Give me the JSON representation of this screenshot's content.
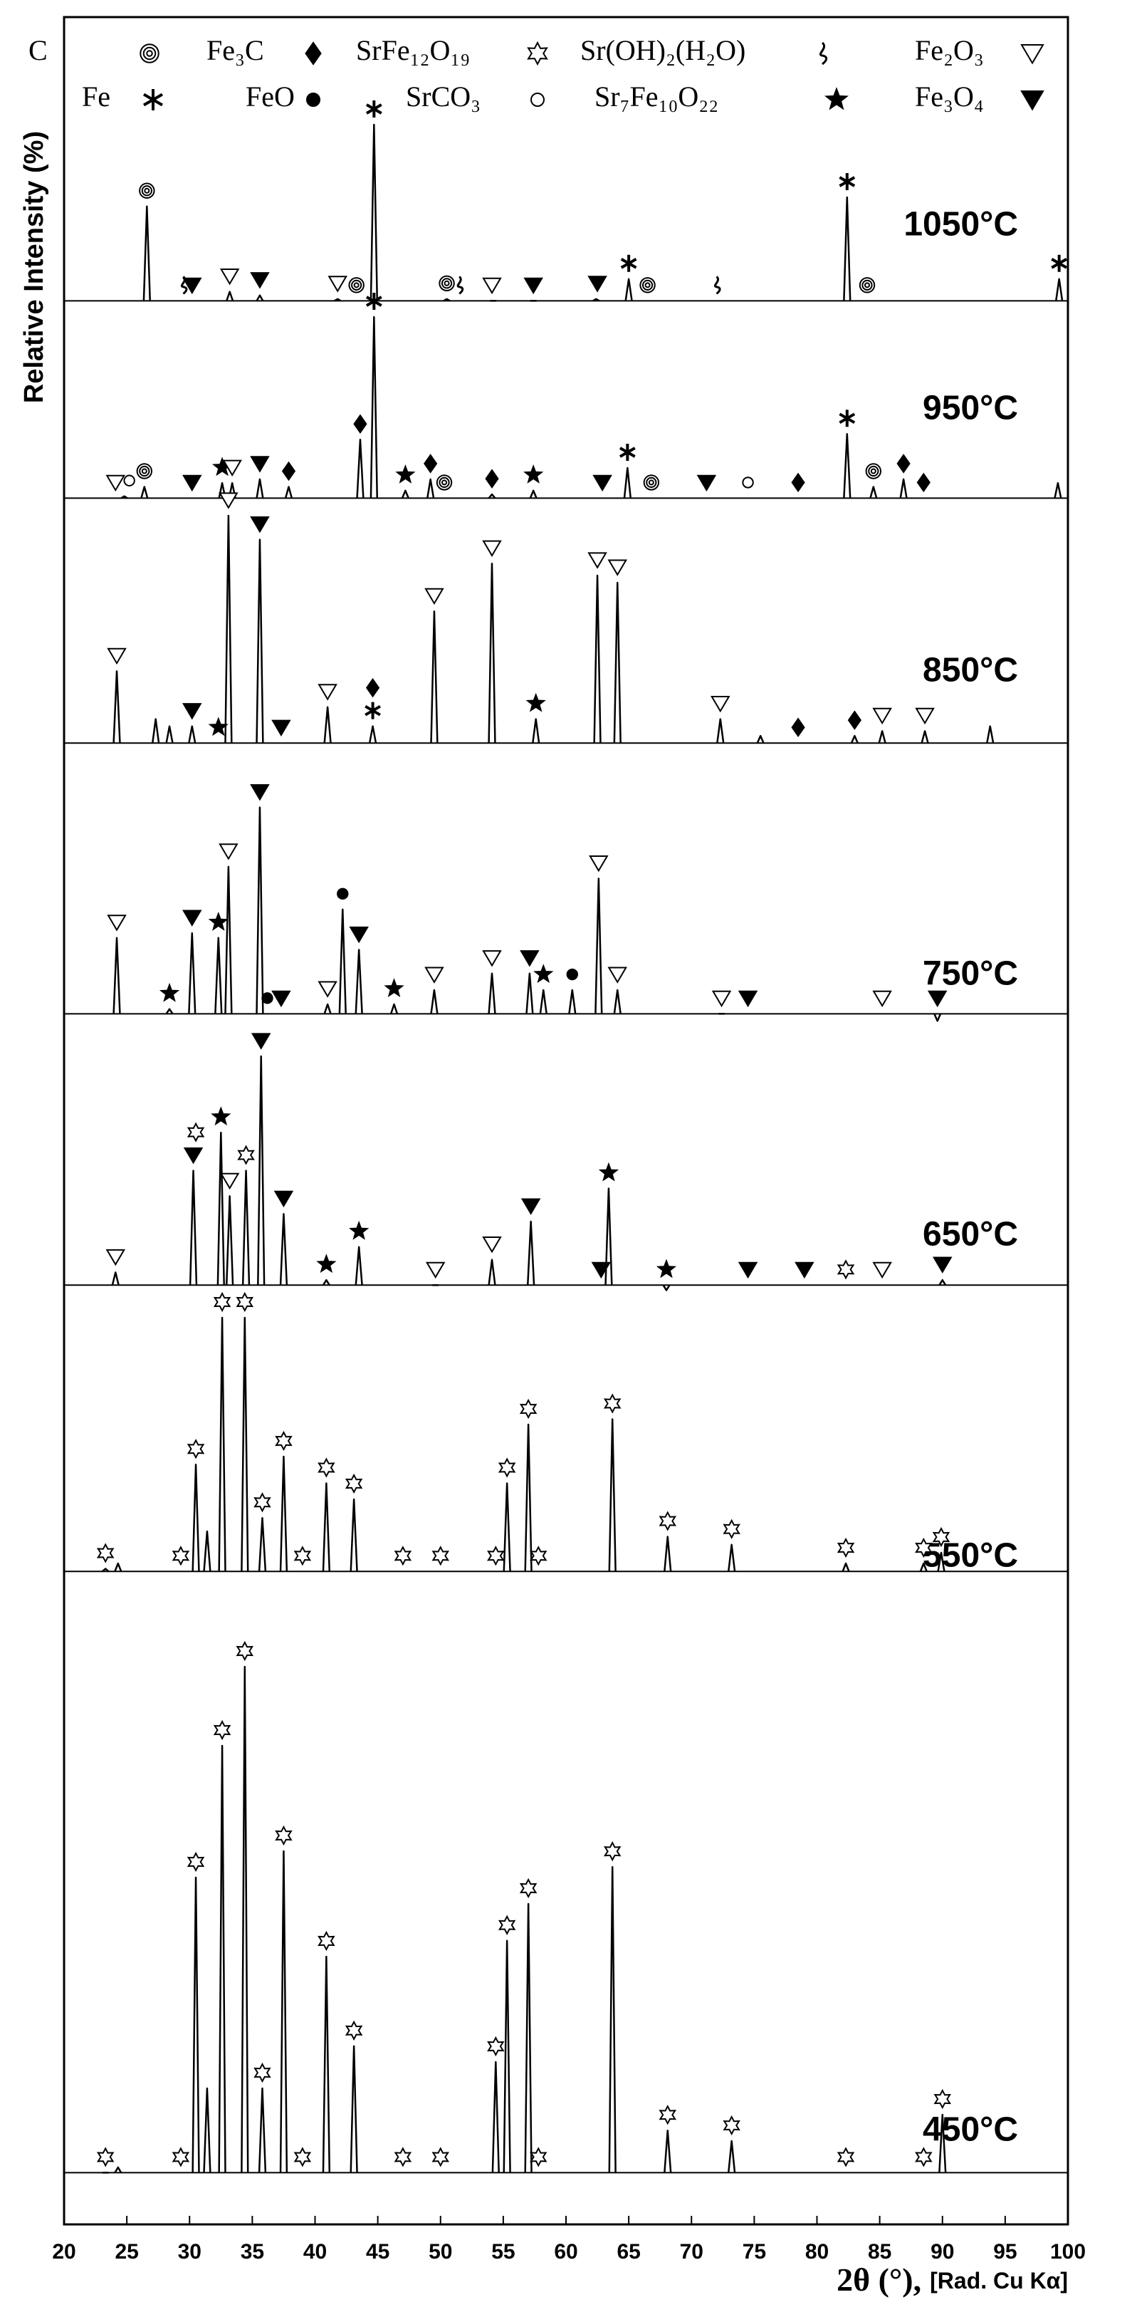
{
  "chart_data": {
    "type": "line",
    "y_label": "Relative Intensity (%)",
    "x_label": "2θ (°),",
    "x_label_note": "[Rad. Cu Kα]",
    "xlim": [
      20,
      100
    ],
    "xticks": [
      20,
      25,
      30,
      35,
      40,
      45,
      50,
      55,
      60,
      65,
      70,
      75,
      80,
      85,
      90,
      95,
      100
    ],
    "ylim": [
      0,
      100
    ],
    "color": "#000000",
    "legend": [
      {
        "name": "C",
        "marker": "concentric"
      },
      {
        "name": "Fe₃C",
        "marker": "diamond"
      },
      {
        "name": "SrFe₁₂O₁₉",
        "marker": "star6-open"
      },
      {
        "name": "Sr(OH)₂(H₂O)",
        "marker": "squiggle"
      },
      {
        "name": "Fe₂O₃",
        "marker": "triangle-open"
      },
      {
        "name": "Fe",
        "marker": "snowflake"
      },
      {
        "name": "FeO",
        "marker": "dot"
      },
      {
        "name": "SrCO₃",
        "marker": "circle-open"
      },
      {
        "name": "Sr₇Fe₁₀O₂₂",
        "marker": "star5-filled"
      },
      {
        "name": "Fe₃O₄",
        "marker": "triangle-filled"
      }
    ],
    "series": [
      {
        "name": "1050°C",
        "baseline": 3,
        "x": [
          26.6,
          33.2,
          35.6,
          41.8,
          44.7,
          50.5,
          54.2,
          57.4,
          62.4,
          65.0,
          82.4,
          99.3
        ],
        "values": [
          55,
          8,
          6,
          4,
          100,
          4,
          3,
          3,
          4,
          15,
          60,
          15
        ],
        "markers": [
          {
            "phase": "C",
            "x": 26.6
          },
          {
            "phase": "Fe₃O₄",
            "x": 30.2
          },
          {
            "phase": "Fe₂O₃",
            "x": 33.2
          },
          {
            "phase": "Fe₃O₄",
            "x": 35.6
          },
          {
            "phase": "Fe₂O₃",
            "x": 41.8
          },
          {
            "phase": "C",
            "x": 43.3
          },
          {
            "phase": "Fe",
            "x": 44.7
          },
          {
            "phase": "C",
            "x": 50.5
          },
          {
            "phase": "Fe₂O₃",
            "x": 54.1
          },
          {
            "phase": "Fe₃O₄",
            "x": 57.4
          },
          {
            "phase": "Fe₃O₄",
            "x": 62.5
          },
          {
            "phase": "Fe",
            "x": 65.0
          },
          {
            "phase": "C",
            "x": 66.5
          },
          {
            "phase": "Fe",
            "x": 82.4
          },
          {
            "phase": "C",
            "x": 84.0
          },
          {
            "phase": "Fe",
            "x": 99.3
          },
          {
            "phase": "Sr(OH)₂(H₂O)",
            "x": 29.5
          },
          {
            "phase": "Sr(OH)₂(H₂O)",
            "x": 51.5
          },
          {
            "phase": "Sr(OH)₂(H₂O)",
            "x": 72.0
          }
        ]
      },
      {
        "name": "950°C",
        "baseline": 4,
        "x": [
          24.8,
          26.4,
          32.6,
          33.4,
          35.6,
          37.9,
          43.6,
          44.7,
          47.2,
          49.2,
          54.1,
          57.4,
          64.9,
          82.4,
          84.5,
          86.9,
          99.2
        ],
        "values": [
          5,
          10,
          12,
          12,
          14,
          10,
          35,
          100,
          8,
          14,
          6,
          8,
          20,
          38,
          10,
          14,
          12
        ],
        "markers": [
          {
            "phase": "Fe₂O₃",
            "x": 24.1
          },
          {
            "phase": "SrCO₃",
            "x": 25.2
          },
          {
            "phase": "C",
            "x": 26.4
          },
          {
            "phase": "Fe₃O₄",
            "x": 30.2
          },
          {
            "phase": "Sr₇Fe₁₀O₂₂",
            "x": 32.6
          },
          {
            "phase": "Fe₂O₃",
            "x": 33.4
          },
          {
            "phase": "Fe₃O₄",
            "x": 35.6
          },
          {
            "phase": "Fe₃C",
            "x": 37.9
          },
          {
            "phase": "Fe₃C",
            "x": 43.6
          },
          {
            "phase": "Fe",
            "x": 44.7
          },
          {
            "phase": "Sr₇Fe₁₀O₂₂",
            "x": 47.2
          },
          {
            "phase": "Fe₃C",
            "x": 49.2
          },
          {
            "phase": "C",
            "x": 50.3
          },
          {
            "phase": "Fe₃C",
            "x": 54.1
          },
          {
            "phase": "Sr₇Fe₁₀O₂₂",
            "x": 57.4
          },
          {
            "phase": "Fe₃O₄",
            "x": 62.9
          },
          {
            "phase": "Fe",
            "x": 64.9
          },
          {
            "phase": "C",
            "x": 66.8
          },
          {
            "phase": "Fe₃O₄",
            "x": 71.2
          },
          {
            "phase": "SrCO₃",
            "x": 74.5
          },
          {
            "phase": "Fe₃C",
            "x": 78.5
          },
          {
            "phase": "Fe",
            "x": 82.4
          },
          {
            "phase": "C",
            "x": 84.5
          },
          {
            "phase": "Fe₃C",
            "x": 86.9
          },
          {
            "phase": "Fe₃C",
            "x": 88.5
          }
        ]
      },
      {
        "name": "850°C",
        "baseline": 5,
        "x": [
          24.2,
          27.3,
          28.4,
          30.2,
          33.1,
          35.6,
          41.0,
          44.6,
          49.5,
          54.1,
          57.6,
          62.5,
          64.1,
          72.3,
          75.5,
          83.0,
          85.2,
          88.6,
          93.8
        ],
        "values": [
          35,
          15,
          12,
          12,
          100,
          90,
          20,
          12,
          60,
          80,
          15,
          75,
          72,
          15,
          8,
          8,
          10,
          10,
          12
        ],
        "markers": [
          {
            "phase": "Fe₂O₃",
            "x": 24.2
          },
          {
            "phase": "Fe₃O₄",
            "x": 30.2
          },
          {
            "phase": "Sr₇Fe₁₀O₂₂",
            "x": 32.3
          },
          {
            "phase": "Fe₂O₃",
            "x": 33.1
          },
          {
            "phase": "Fe₃O₄",
            "x": 35.6
          },
          {
            "phase": "Fe₃O₄",
            "x": 37.3
          },
          {
            "phase": "Fe₂O₃",
            "x": 41.0
          },
          {
            "phase": "Fe",
            "x": 44.6
          },
          {
            "phase": "Fe₃C",
            "x": 44.6
          },
          {
            "phase": "Fe₂O₃",
            "x": 49.5
          },
          {
            "phase": "Fe₂O₃",
            "x": 54.1
          },
          {
            "phase": "Sr₇Fe₁₀O₂₂",
            "x": 57.6
          },
          {
            "phase": "Fe₂O₃",
            "x": 62.5
          },
          {
            "phase": "Fe₂O₃",
            "x": 64.1
          },
          {
            "phase": "Fe₂O₃",
            "x": 72.3
          },
          {
            "phase": "Fe₃C",
            "x": 78.5
          },
          {
            "phase": "Fe₃C",
            "x": 83.0
          },
          {
            "phase": "Fe₂O₃",
            "x": 85.2
          },
          {
            "phase": "Fe₂O₃",
            "x": 88.6
          }
        ]
      },
      {
        "name": "750°C",
        "baseline": 8,
        "x": [
          24.2,
          28.4,
          30.2,
          32.3,
          33.1,
          35.6,
          41.0,
          42.2,
          43.5,
          46.3,
          49.5,
          54.1,
          57.1,
          58.2,
          60.5,
          62.6,
          64.1,
          72.4,
          89.6
        ],
        "values": [
          40,
          10,
          42,
          40,
          70,
          95,
          12,
          52,
          35,
          12,
          18,
          25,
          25,
          18,
          18,
          65,
          18,
          8,
          5
        ],
        "markers": [
          {
            "phase": "Fe₂O₃",
            "x": 24.2
          },
          {
            "phase": "Sr₇Fe₁₀O₂₂",
            "x": 28.4
          },
          {
            "phase": "Fe₃O₄",
            "x": 30.2
          },
          {
            "phase": "Sr₇Fe₁₀O₂₂",
            "x": 32.3
          },
          {
            "phase": "Fe₂O₃",
            "x": 33.1
          },
          {
            "phase": "Fe₃O₄",
            "x": 35.6
          },
          {
            "phase": "FeO",
            "x": 36.2
          },
          {
            "phase": "Fe₃O₄",
            "x": 37.3
          },
          {
            "phase": "Fe₂O₃",
            "x": 41.0
          },
          {
            "phase": "FeO",
            "x": 42.2
          },
          {
            "phase": "Fe₃O₄",
            "x": 43.5
          },
          {
            "phase": "Sr₇Fe₁₀O₂₂",
            "x": 46.3
          },
          {
            "phase": "Fe₂O₃",
            "x": 49.5
          },
          {
            "phase": "Fe₂O₃",
            "x": 54.1
          },
          {
            "phase": "Fe₃O₄",
            "x": 57.1
          },
          {
            "phase": "Sr₇Fe₁₀O₂₂",
            "x": 58.2
          },
          {
            "phase": "FeO",
            "x": 60.5
          },
          {
            "phase": "Fe₂O₃",
            "x": 62.6
          },
          {
            "phase": "Fe₂O₃",
            "x": 64.1
          },
          {
            "phase": "Fe₂O₃",
            "x": 72.4
          },
          {
            "phase": "Fe₃O₄",
            "x": 74.5
          },
          {
            "phase": "Fe₂O₃",
            "x": 85.2
          },
          {
            "phase": "Fe₃O₄",
            "x": 89.6
          }
        ]
      },
      {
        "name": "650°C",
        "baseline": 10,
        "x": [
          24.1,
          30.3,
          32.5,
          33.2,
          34.5,
          35.7,
          37.5,
          40.9,
          43.5,
          49.6,
          54.1,
          57.2,
          63.4,
          68.0,
          90.0
        ],
        "values": [
          15,
          55,
          70,
          45,
          55,
          100,
          38,
          12,
          25,
          10,
          20,
          35,
          48,
          8,
          12
        ],
        "markers": [
          {
            "phase": "Fe₂O₃",
            "x": 24.1
          },
          {
            "phase": "Fe₃O₄",
            "x": 30.3
          },
          {
            "phase": "SrFe₁₂O₁₉",
            "x": 30.5
          },
          {
            "phase": "Sr₇Fe₁₀O₂₂",
            "x": 32.5
          },
          {
            "phase": "Fe₂O₃",
            "x": 33.2
          },
          {
            "phase": "SrFe₁₂O₁₉",
            "x": 34.5
          },
          {
            "phase": "Fe₃O₄",
            "x": 35.7
          },
          {
            "phase": "Fe₃O₄",
            "x": 37.5
          },
          {
            "phase": "Sr₇Fe₁₀O₂₂",
            "x": 40.9
          },
          {
            "phase": "Sr₇Fe₁₀O₂₂",
            "x": 43.5
          },
          {
            "phase": "Fe₂O₃",
            "x": 49.6
          },
          {
            "phase": "Fe₂O₃",
            "x": 54.1
          },
          {
            "phase": "Fe₃O₄",
            "x": 57.2
          },
          {
            "phase": "Fe₃O₄",
            "x": 62.8
          },
          {
            "phase": "Sr₇Fe₁₀O₂₂",
            "x": 63.4
          },
          {
            "phase": "Sr₇Fe₁₀O₂₂",
            "x": 68.0
          },
          {
            "phase": "Fe₃O₄",
            "x": 74.5
          },
          {
            "phase": "Fe₃O₄",
            "x": 79.0
          },
          {
            "phase": "SrFe₁₂O₁₉",
            "x": 82.3
          },
          {
            "phase": "Fe₂O₃",
            "x": 85.2
          },
          {
            "phase": "Fe₃O₄",
            "x": 90.0
          }
        ]
      },
      {
        "name": "550°C",
        "baseline": 5,
        "x": [
          23.3,
          24.3,
          30.5,
          31.4,
          32.6,
          34.4,
          35.8,
          37.5,
          40.9,
          43.1,
          55.3,
          57.0,
          63.7,
          68.1,
          73.2,
          82.3,
          88.5,
          89.9
        ],
        "values": [
          6,
          8,
          45,
          20,
          100,
          100,
          25,
          48,
          38,
          32,
          38,
          60,
          62,
          18,
          15,
          8,
          8,
          12
        ],
        "markers": [
          {
            "phase": "SrFe₁₂O₁₉",
            "x": 23.3
          },
          {
            "phase": "SrFe₁₂O₁₉",
            "x": 29.3
          },
          {
            "phase": "SrFe₁₂O₁₉",
            "x": 30.5
          },
          {
            "phase": "SrFe₁₂O₁₉",
            "x": 32.6
          },
          {
            "phase": "SrFe₁₂O₁₉",
            "x": 34.4
          },
          {
            "phase": "SrFe₁₂O₁₉",
            "x": 35.8
          },
          {
            "phase": "SrFe₁₂O₁₉",
            "x": 37.5
          },
          {
            "phase": "SrFe₁₂O₁₉",
            "x": 39.0
          },
          {
            "phase": "SrFe₁₂O₁₉",
            "x": 40.9
          },
          {
            "phase": "SrFe₁₂O₁₉",
            "x": 43.1
          },
          {
            "phase": "SrFe₁₂O₁₉",
            "x": 47.0
          },
          {
            "phase": "SrFe₁₂O₁₉",
            "x": 50.0
          },
          {
            "phase": "SrFe₁₂O₁₉",
            "x": 54.4
          },
          {
            "phase": "SrFe₁₂O₁₉",
            "x": 55.3
          },
          {
            "phase": "SrFe₁₂O₁₉",
            "x": 57.0
          },
          {
            "phase": "SrFe₁₂O₁₉",
            "x": 57.8
          },
          {
            "phase": "SrFe₁₂O₁₉",
            "x": 63.7
          },
          {
            "phase": "SrFe₁₂O₁₉",
            "x": 68.1
          },
          {
            "phase": "SrFe₁₂O₁₉",
            "x": 73.2
          },
          {
            "phase": "SrFe₁₂O₁₉",
            "x": 82.3
          },
          {
            "phase": "SrFe₁₂O₁₉",
            "x": 88.5
          },
          {
            "phase": "SrFe₁₂O₁₉",
            "x": 89.9
          }
        ]
      },
      {
        "name": "450°C",
        "baseline": 4,
        "x": [
          23.3,
          24.3,
          30.5,
          31.4,
          32.6,
          34.4,
          35.8,
          37.5,
          40.9,
          43.1,
          54.4,
          55.3,
          57.0,
          63.7,
          68.1,
          73.2,
          90.0
        ],
        "values": [
          4,
          5,
          60,
          20,
          85,
          100,
          20,
          65,
          45,
          28,
          25,
          48,
          55,
          62,
          12,
          10,
          15
        ],
        "markers": [
          {
            "phase": "SrFe₁₂O₁₉",
            "x": 23.3
          },
          {
            "phase": "SrFe₁₂O₁₉",
            "x": 29.3
          },
          {
            "phase": "SrFe₁₂O₁₉",
            "x": 30.5
          },
          {
            "phase": "SrFe₁₂O₁₉",
            "x": 32.6
          },
          {
            "phase": "SrFe₁₂O₁₉",
            "x": 34.4
          },
          {
            "phase": "SrFe₁₂O₁₉",
            "x": 35.8
          },
          {
            "phase": "SrFe₁₂O₁₉",
            "x": 37.5
          },
          {
            "phase": "SrFe₁₂O₁₉",
            "x": 39.0
          },
          {
            "phase": "SrFe₁₂O₁₉",
            "x": 40.9
          },
          {
            "phase": "SrFe₁₂O₁₉",
            "x": 43.1
          },
          {
            "phase": "SrFe₁₂O₁₉",
            "x": 47.0
          },
          {
            "phase": "SrFe₁₂O₁₉",
            "x": 50.0
          },
          {
            "phase": "SrFe₁₂O₁₉",
            "x": 54.4
          },
          {
            "phase": "SrFe₁₂O₁₉",
            "x": 55.3
          },
          {
            "phase": "SrFe₁₂O₁₉",
            "x": 57.0
          },
          {
            "phase": "SrFe₁₂O₁₉",
            "x": 57.8
          },
          {
            "phase": "SrFe₁₂O₁₉",
            "x": 63.7
          },
          {
            "phase": "SrFe₁₂O₁₉",
            "x": 68.1
          },
          {
            "phase": "SrFe₁₂O₁₉",
            "x": 73.2
          },
          {
            "phase": "SrFe₁₂O₁₉",
            "x": 82.3
          },
          {
            "phase": "SrFe₁₂O₁₉",
            "x": 88.5
          },
          {
            "phase": "SrFe₁₂O₁₉",
            "x": 90.0
          }
        ]
      }
    ]
  }
}
